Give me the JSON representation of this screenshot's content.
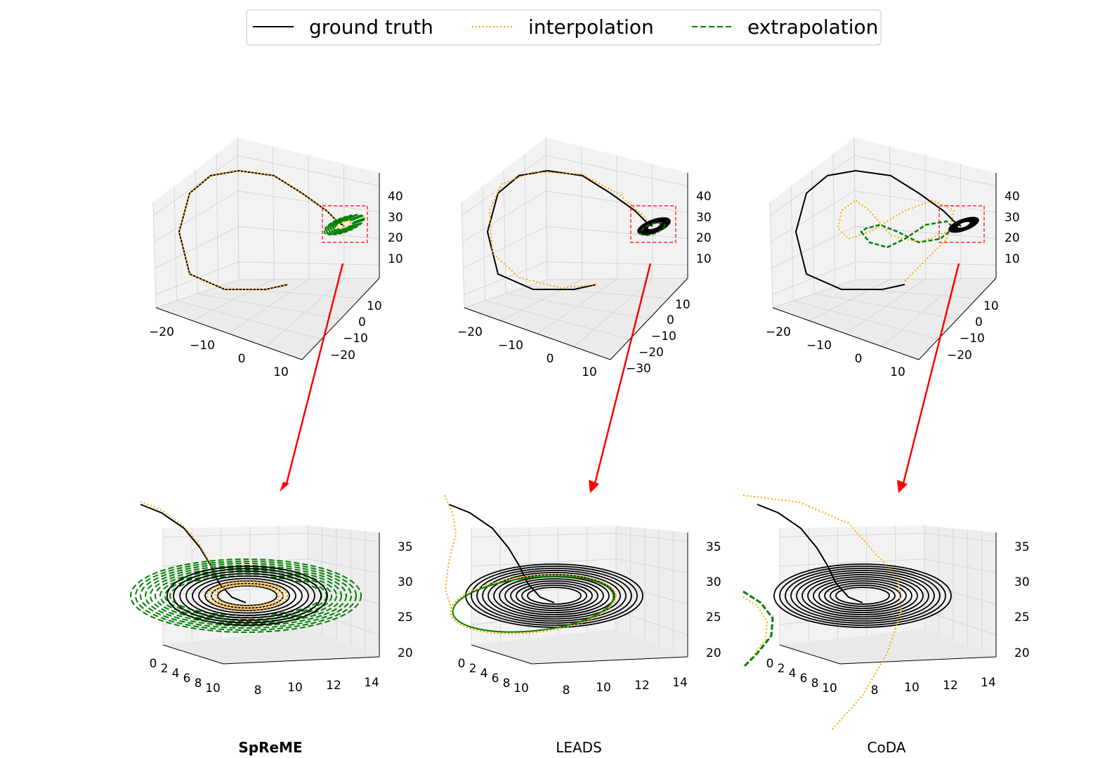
{
  "legend": {
    "placement": "top-center",
    "entries": [
      {
        "label": "ground truth",
        "color": "#000000",
        "style": "solid"
      },
      {
        "label": "interpolation",
        "color": "#ffa500",
        "style": "dotted"
      },
      {
        "label": "extrapolation",
        "color": "#008000",
        "style": "dashed"
      }
    ]
  },
  "chart_data": [
    {
      "type": "line",
      "panel": "overview",
      "method": "SpReME",
      "bold": true,
      "series": [
        "ground truth",
        "interpolation",
        "extrapolation"
      ],
      "x_ticks": [
        "−20",
        "−10",
        "0",
        "10"
      ],
      "y_ticks": [
        "10",
        "0",
        "−10",
        "−20"
      ],
      "z_ticks": [
        "40",
        "30",
        "20",
        "10"
      ],
      "zoom_box": true
    },
    {
      "type": "line",
      "panel": "overview",
      "method": "LEADS",
      "bold": false,
      "series": [
        "ground truth",
        "interpolation",
        "extrapolation"
      ],
      "x_ticks": [
        "−20",
        "−10",
        "0",
        "10"
      ],
      "y_ticks": [
        "10",
        "0",
        "−10",
        "−20",
        "−30"
      ],
      "z_ticks": [
        "40",
        "30",
        "20",
        "10"
      ],
      "zoom_box": true
    },
    {
      "type": "line",
      "panel": "overview",
      "method": "CoDA",
      "bold": false,
      "series": [
        "ground truth",
        "interpolation",
        "extrapolation"
      ],
      "x_ticks": [
        "−20",
        "−10",
        "0",
        "10"
      ],
      "y_ticks": [
        "10",
        "0",
        "−10",
        "−20"
      ],
      "z_ticks": [
        "40",
        "30",
        "20",
        "10"
      ],
      "zoom_box": true
    },
    {
      "type": "line",
      "panel": "zoom",
      "method": "SpReME",
      "bold": true,
      "x_ticks": [
        "0",
        "2",
        "4",
        "6",
        "8",
        "10"
      ],
      "y_ticks": [
        "8",
        "10",
        "12",
        "14"
      ],
      "z_ticks": [
        "35",
        "30",
        "25",
        "20"
      ]
    },
    {
      "type": "line",
      "panel": "zoom",
      "method": "LEADS",
      "bold": false,
      "x_ticks": [
        "0",
        "2",
        "4",
        "6",
        "8",
        "10"
      ],
      "y_ticks": [
        "8",
        "10",
        "12",
        "14"
      ],
      "z_ticks": [
        "35",
        "30",
        "25",
        "20"
      ]
    },
    {
      "type": "line",
      "panel": "zoom",
      "method": "CoDA",
      "bold": false,
      "x_ticks": [
        "0",
        "2",
        "4",
        "6",
        "8",
        "10"
      ],
      "y_ticks": [
        "8",
        "10",
        "12",
        "14"
      ],
      "z_ticks": [
        "35",
        "30",
        "25",
        "20"
      ]
    }
  ],
  "methods": [
    {
      "label": "SpReME",
      "bold": true
    },
    {
      "label": "LEADS",
      "bold": false
    },
    {
      "label": "CoDA",
      "bold": false
    }
  ],
  "colors": {
    "ground_truth": "#000000",
    "interpolation": "#ffa500",
    "extrapolation": "#008000",
    "zoom_box": "#ff0000",
    "arrow": "#ff0000",
    "pane": "#f2f2f2",
    "grid": "#d6d6d6"
  }
}
